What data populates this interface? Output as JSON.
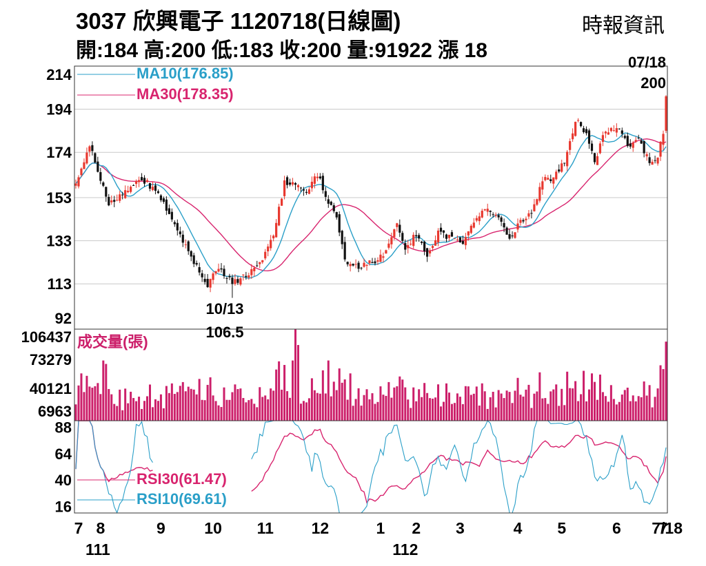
{
  "header": {
    "title": "3037  欣興電子 1120718(日線圖)",
    "ohlc_line": "開:184 高:200 低:183 收:200 量:91922 漲 18",
    "source": "時報資訊"
  },
  "colors": {
    "up": "#e8382f",
    "down": "#111111",
    "ma10": "#2a9fc8",
    "ma30": "#d8246e",
    "volume": "#cc1f6a",
    "rsi30": "#d8246e",
    "rsi10": "#2a9fc8",
    "grid": "#c8c8c8"
  },
  "chart_data": [
    {
      "type": "candlestick",
      "panel": "price",
      "ylim": [
        92,
        214
      ],
      "yticks": [
        "214",
        "194",
        "174",
        "153",
        "133",
        "113",
        "92"
      ],
      "legend": [
        {
          "name": "MA10(176.85)",
          "color": "#2a9fc8"
        },
        {
          "name": "MA30(178.35)",
          "color": "#d8246e"
        }
      ],
      "annotations": {
        "low_date": "10/13",
        "low_value": "106.5",
        "last_date": "07/18",
        "last_value": "200"
      },
      "anchors": [
        {
          "i": 0,
          "p": 160
        },
        {
          "i": 5,
          "p": 178
        },
        {
          "i": 12,
          "p": 150
        },
        {
          "i": 18,
          "p": 156
        },
        {
          "i": 24,
          "p": 162
        },
        {
          "i": 30,
          "p": 155
        },
        {
          "i": 36,
          "p": 140
        },
        {
          "i": 42,
          "p": 126
        },
        {
          "i": 48,
          "p": 112
        },
        {
          "i": 52,
          "p": 121
        },
        {
          "i": 57,
          "p": 113
        },
        {
          "i": 63,
          "p": 118
        },
        {
          "i": 68,
          "p": 124
        },
        {
          "i": 72,
          "p": 135
        },
        {
          "i": 76,
          "p": 160
        },
        {
          "i": 80,
          "p": 160
        },
        {
          "i": 84,
          "p": 155
        },
        {
          "i": 88,
          "p": 164
        },
        {
          "i": 92,
          "p": 150
        },
        {
          "i": 95,
          "p": 145
        },
        {
          "i": 98,
          "p": 123
        },
        {
          "i": 104,
          "p": 121
        },
        {
          "i": 108,
          "p": 123
        },
        {
          "i": 113,
          "p": 128
        },
        {
          "i": 117,
          "p": 140
        },
        {
          "i": 120,
          "p": 130
        },
        {
          "i": 124,
          "p": 136
        },
        {
          "i": 128,
          "p": 127
        },
        {
          "i": 132,
          "p": 137
        },
        {
          "i": 137,
          "p": 134
        },
        {
          "i": 141,
          "p": 131
        },
        {
          "i": 146,
          "p": 145
        },
        {
          "i": 150,
          "p": 147
        },
        {
          "i": 154,
          "p": 143
        },
        {
          "i": 158,
          "p": 134
        },
        {
          "i": 162,
          "p": 142
        },
        {
          "i": 166,
          "p": 146
        },
        {
          "i": 170,
          "p": 161
        },
        {
          "i": 174,
          "p": 162
        },
        {
          "i": 178,
          "p": 170
        },
        {
          "i": 182,
          "p": 189
        },
        {
          "i": 186,
          "p": 183
        },
        {
          "i": 189,
          "p": 170
        },
        {
          "i": 193,
          "p": 184
        },
        {
          "i": 197,
          "p": 186
        },
        {
          "i": 201,
          "p": 177
        },
        {
          "i": 205,
          "p": 180
        },
        {
          "i": 209,
          "p": 170
        },
        {
          "i": 212,
          "p": 172
        },
        {
          "i": 214,
          "p": 184
        },
        {
          "i": 215,
          "p": 200
        }
      ]
    },
    {
      "type": "bar",
      "panel": "volume",
      "ylim": [
        0,
        106437
      ],
      "yticks": [
        "106437",
        "73279",
        "40121",
        "6963"
      ],
      "label": "成交量(張)"
    },
    {
      "type": "line",
      "panel": "rsi",
      "ylim": [
        10,
        94
      ],
      "yticks": [
        "88",
        "64",
        "40",
        "16"
      ],
      "legend": [
        {
          "name": "RSI30(61.47)",
          "color": "#d8246e"
        },
        {
          "name": "RSI10(69.61)",
          "color": "#2a9fc8"
        }
      ]
    }
  ],
  "x_axis": {
    "months": [
      {
        "label": "7",
        "i": 0
      },
      {
        "label": "8",
        "i": 8
      },
      {
        "label": "9",
        "i": 30
      },
      {
        "label": "10",
        "i": 49
      },
      {
        "label": "11",
        "i": 68
      },
      {
        "label": "12",
        "i": 88
      },
      {
        "label": "1",
        "i": 110
      },
      {
        "label": "2",
        "i": 123
      },
      {
        "label": "3",
        "i": 139
      },
      {
        "label": "4",
        "i": 160
      },
      {
        "label": "5",
        "i": 176
      },
      {
        "label": "6",
        "i": 196
      },
      {
        "label": "7",
        "i": 213
      },
      {
        "label": "7/18",
        "i": 217
      }
    ],
    "years": [
      {
        "label": "111",
        "i": 3
      },
      {
        "label": "112",
        "i": 115
      }
    ]
  }
}
